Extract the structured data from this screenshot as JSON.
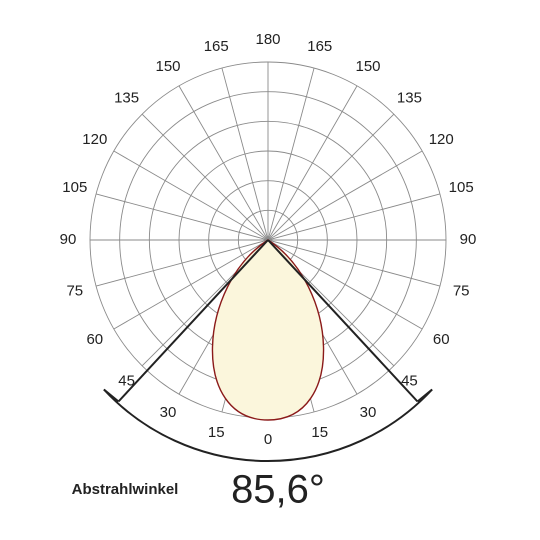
{
  "angle_labels": {
    "bottom": 0,
    "top": 180,
    "left": [
      15,
      30,
      45,
      60,
      75,
      90,
      105,
      120,
      135,
      150,
      165
    ],
    "right": [
      15,
      30,
      45,
      60,
      75,
      90,
      105,
      120,
      135,
      150,
      165
    ]
  },
  "caption": "Abstrahlwinkel",
  "beam_angle": "85,6°"
}
